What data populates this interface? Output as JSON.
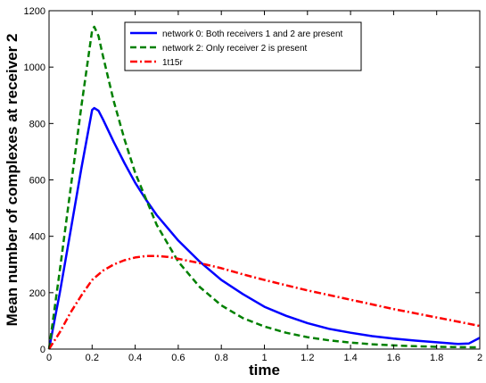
{
  "chart_data": {
    "type": "line",
    "title": "",
    "xlabel": "time",
    "ylabel": "Mean number of complexes at receiver 2",
    "xlim": [
      0,
      2
    ],
    "ylim": [
      0,
      1200
    ],
    "xticks": [
      "0",
      "0.2",
      "0.4",
      "0.6",
      "0.8",
      "1",
      "1.2",
      "1.4",
      "1.6",
      "1.8",
      "2"
    ],
    "yticks": [
      "0",
      "200",
      "400",
      "600",
      "800",
      "1000",
      "1200"
    ],
    "grid": false,
    "legend_position": "top-center",
    "series": [
      {
        "name": "network 0: Both receivers 1 and 2 are present",
        "color": "#0000ff",
        "style": "solid",
        "x": [
          0,
          0.05,
          0.1,
          0.15,
          0.2,
          0.21,
          0.23,
          0.25,
          0.3,
          0.35,
          0.4,
          0.45,
          0.5,
          0.6,
          0.7,
          0.8,
          0.9,
          1.0,
          1.1,
          1.2,
          1.3,
          1.4,
          1.5,
          1.6,
          1.7,
          1.8,
          1.9,
          1.95,
          2.0
        ],
        "y": [
          0,
          200,
          420,
          640,
          848,
          855,
          845,
          815,
          735,
          660,
          590,
          530,
          475,
          385,
          310,
          245,
          195,
          150,
          118,
          92,
          72,
          58,
          46,
          37,
          30,
          24,
          18,
          20,
          40
        ]
      },
      {
        "name": "network 2: Only receiver 2 is present",
        "color": "#008000",
        "style": "dashed",
        "x": [
          0,
          0.05,
          0.1,
          0.15,
          0.2,
          0.21,
          0.23,
          0.25,
          0.3,
          0.35,
          0.4,
          0.5,
          0.6,
          0.7,
          0.8,
          0.9,
          1.0,
          1.1,
          1.2,
          1.3,
          1.4,
          1.5,
          1.6,
          1.7,
          1.8,
          1.9,
          2.0
        ],
        "y": [
          0,
          280,
          570,
          860,
          1130,
          1143,
          1110,
          1040,
          880,
          745,
          625,
          440,
          310,
          220,
          155,
          110,
          80,
          58,
          42,
          31,
          23,
          17,
          13,
          10,
          8,
          7,
          6
        ]
      },
      {
        "name": "1t15r",
        "color": "#ff0000",
        "style": "dashdot",
        "x": [
          0,
          0.05,
          0.1,
          0.15,
          0.2,
          0.25,
          0.3,
          0.35,
          0.4,
          0.45,
          0.5,
          0.55,
          0.6,
          0.7,
          0.8,
          0.9,
          1.0,
          1.2,
          1.4,
          1.6,
          1.8,
          2.0
        ],
        "y": [
          0,
          60,
          130,
          190,
          245,
          278,
          300,
          315,
          325,
          330,
          330,
          327,
          320,
          305,
          287,
          265,
          245,
          208,
          175,
          142,
          112,
          82
        ]
      }
    ]
  }
}
